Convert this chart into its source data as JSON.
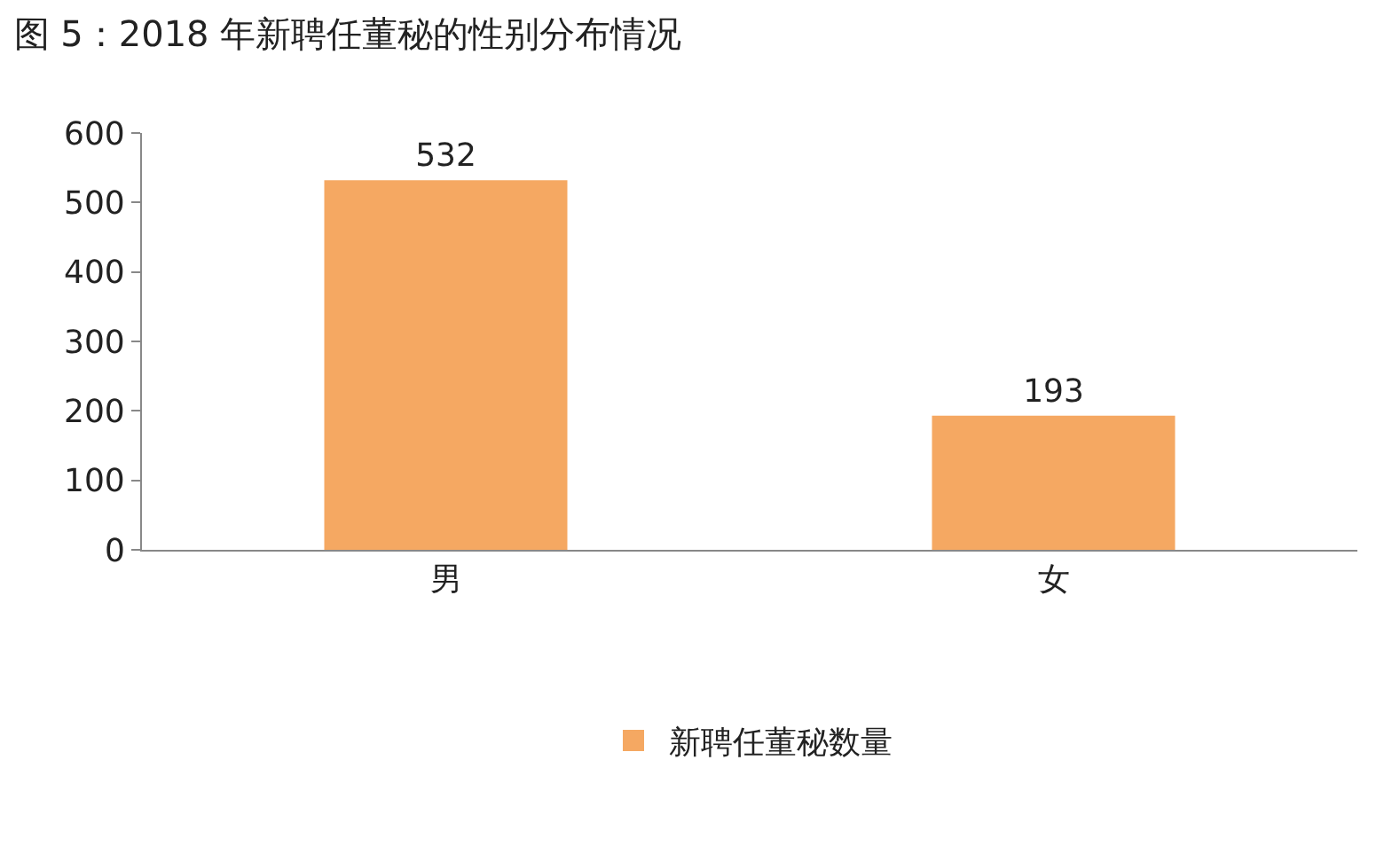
{
  "chart_data": {
    "type": "bar",
    "title": "图 5：2018 年新聘任董秘的性别分布情况",
    "categories": [
      "男",
      "女"
    ],
    "series": [
      {
        "name": "新聘任董秘数量",
        "color": "#f5a862",
        "values": [
          532,
          193
        ]
      }
    ],
    "ylim": [
      0,
      600
    ],
    "yticks": [
      0,
      100,
      200,
      300,
      400,
      500,
      600
    ],
    "grid": false,
    "legend": "bottom",
    "data_labels": true
  }
}
